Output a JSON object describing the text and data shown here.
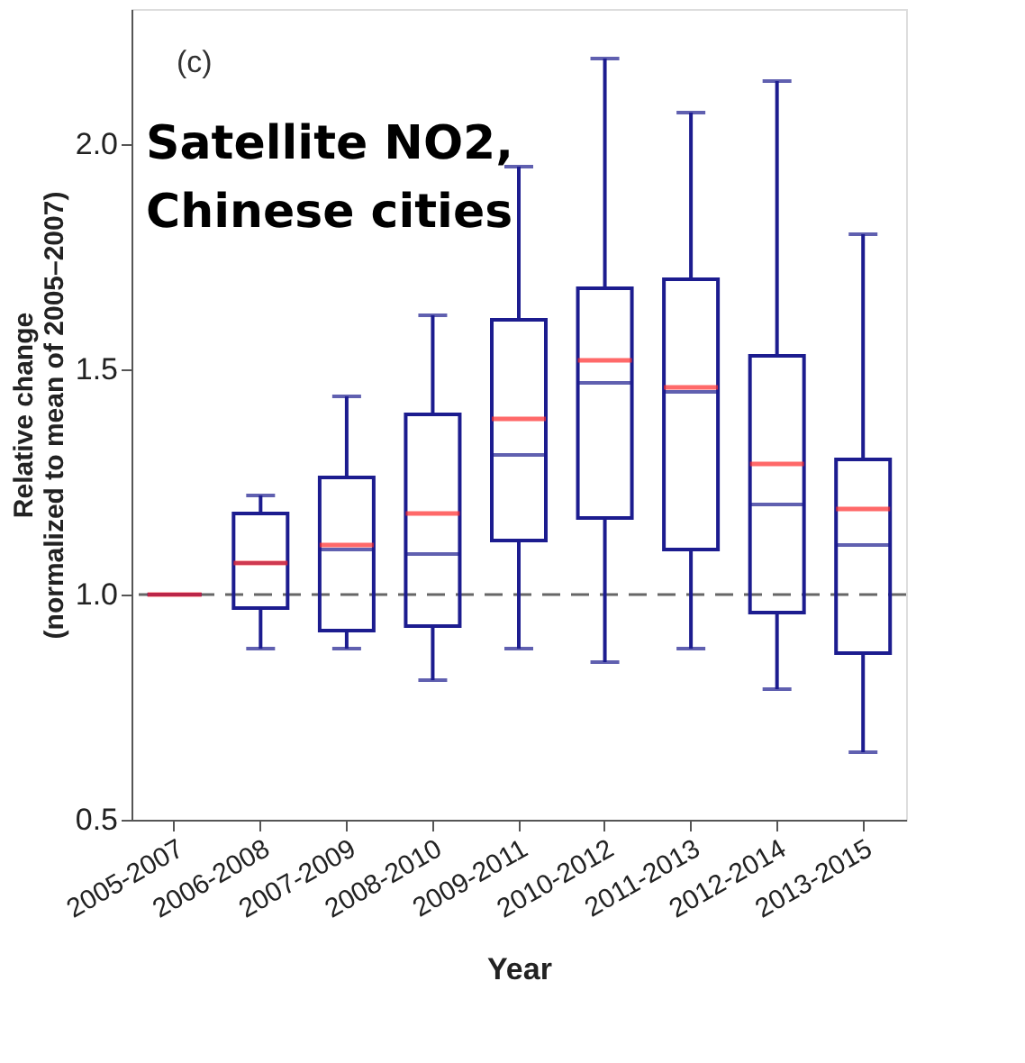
{
  "chart_data": {
    "type": "box",
    "title": "Satellite NO2,\nChinese cities",
    "xlabel": "Year",
    "ylabel": "Relative change\n(normalized to mean of 2005–2007)",
    "categories": [
      "2005-2007",
      "2006-2008",
      "2007-2009",
      "2008-2010",
      "2009-2011",
      "2010-2012",
      "2011-2013",
      "2012-2014",
      "2013-2015"
    ],
    "series": [
      {
        "color": "#1c1c8f",
        "boxes": [
          {
            "low": 1.0,
            "q1": 1.0,
            "median": 1.0,
            "q3": 1.0,
            "high": 1.0,
            "mean": 1.0
          },
          {
            "low": 0.88,
            "q1": 0.97,
            "median": 1.07,
            "q3": 1.18,
            "high": 1.22,
            "mean": 1.07
          },
          {
            "low": 0.88,
            "q1": 0.92,
            "median": 1.1,
            "q3": 1.26,
            "high": 1.44,
            "mean": 1.11
          },
          {
            "low": 0.81,
            "q1": 0.93,
            "median": 1.09,
            "q3": 1.4,
            "high": 1.62,
            "mean": 1.18
          },
          {
            "low": 0.88,
            "q1": 1.12,
            "median": 1.31,
            "q3": 1.61,
            "high": 1.95,
            "mean": 1.39
          },
          {
            "low": 0.85,
            "q1": 1.17,
            "median": 1.47,
            "q3": 1.68,
            "high": 2.19,
            "mean": 1.52
          },
          {
            "low": 0.88,
            "q1": 1.1,
            "median": 1.45,
            "q3": 1.7,
            "high": 2.07,
            "mean": 1.46
          },
          {
            "low": 0.79,
            "q1": 0.96,
            "median": 1.2,
            "q3": 1.53,
            "high": 2.14,
            "mean": 1.29
          },
          {
            "low": 0.65,
            "q1": 0.87,
            "median": 1.11,
            "q3": 1.3,
            "high": 1.8,
            "mean": 1.19
          }
        ]
      }
    ],
    "ylim": [
      0.5,
      2.3
    ],
    "yticks": [
      0.5,
      {
        "value": 1.0,
        "label": "1.0"
      },
      1.5,
      {
        "value": 2.0,
        "label": "2.0"
      }
    ],
    "ref_lines": [
      {
        "axis": "y",
        "value": 1.0,
        "color": "#666666",
        "line_style": "dashed"
      }
    ],
    "annotations": [
      "(c)"
    ],
    "grid": false,
    "legend": false
  }
}
